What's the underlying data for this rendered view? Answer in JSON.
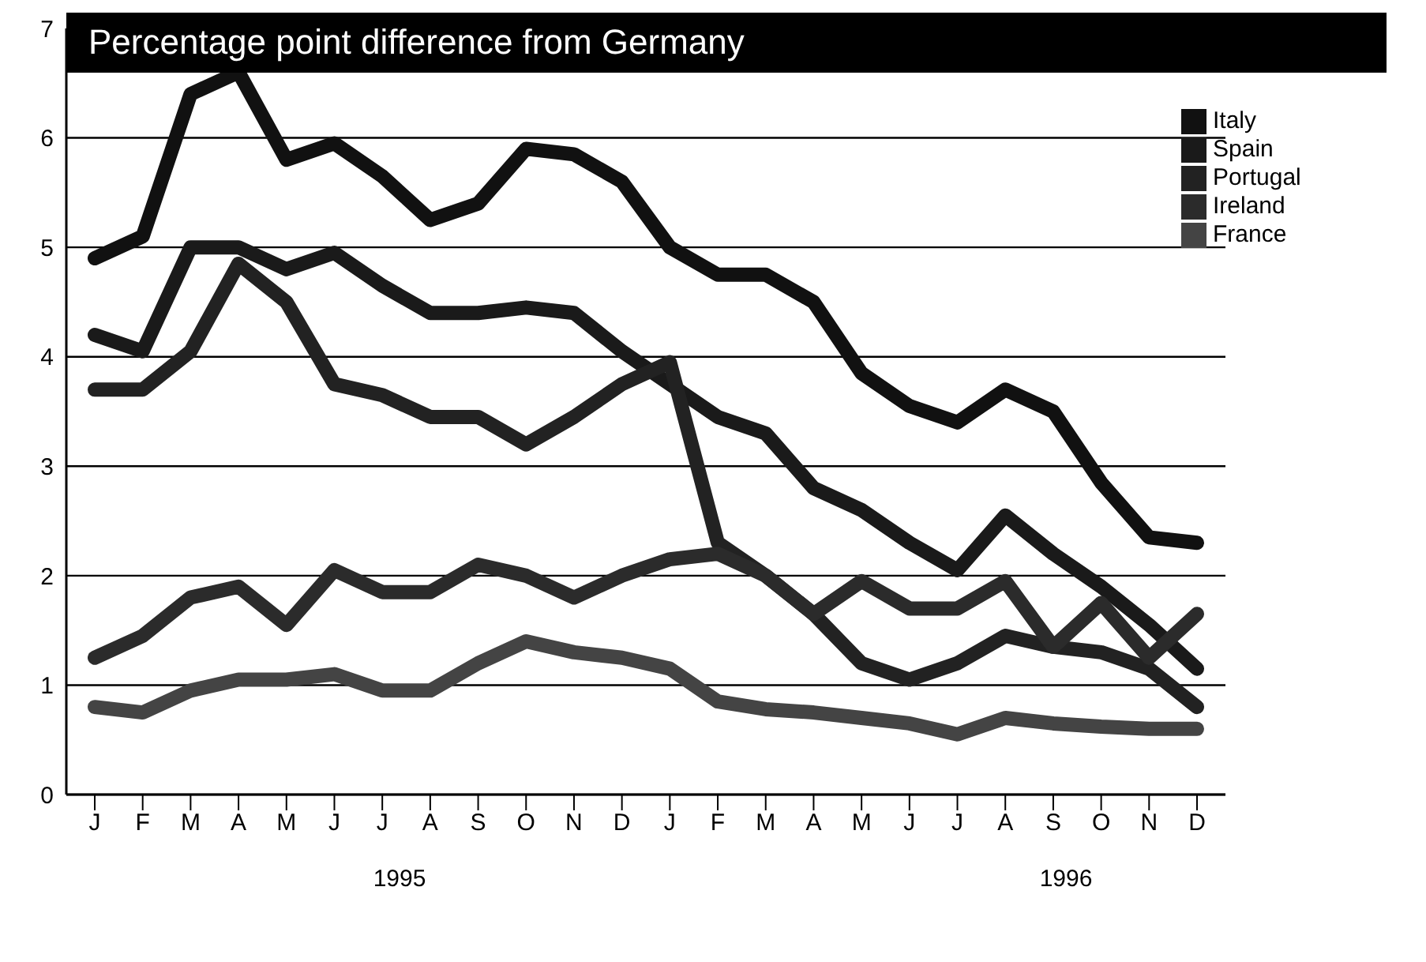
{
  "chart_data": {
    "type": "line",
    "title": "Percentage point difference from Germany",
    "categories": [
      "J",
      "F",
      "M",
      "A",
      "M",
      "J",
      "J",
      "A",
      "S",
      "O",
      "N",
      "D",
      "J",
      "F",
      "M",
      "A",
      "M",
      "J",
      "J",
      "A",
      "S",
      "O",
      "N",
      "D"
    ],
    "series": [
      {
        "name": "Italy",
        "color": "#111111",
        "values": [
          4.9,
          5.1,
          6.4,
          6.6,
          5.8,
          5.95,
          5.65,
          5.25,
          5.4,
          5.9,
          5.85,
          5.6,
          5.0,
          4.75,
          4.75,
          4.5,
          3.85,
          3.55,
          3.4,
          3.7,
          3.5,
          2.85,
          2.35,
          2.3
        ]
      },
      {
        "name": "Spain",
        "color": "#1a1a1a",
        "values": [
          4.2,
          4.05,
          5.0,
          5.0,
          4.8,
          4.95,
          4.65,
          4.4,
          4.4,
          4.45,
          4.4,
          4.05,
          3.75,
          3.45,
          3.3,
          2.8,
          2.6,
          2.3,
          2.05,
          2.55,
          2.2,
          1.9,
          1.55,
          1.15
        ]
      },
      {
        "name": "Portugal",
        "color": "#222222",
        "values": [
          3.7,
          3.7,
          4.05,
          4.85,
          4.5,
          3.75,
          3.65,
          3.45,
          3.45,
          3.2,
          3.45,
          3.75,
          3.95,
          2.3,
          2.0,
          1.65,
          1.2,
          1.05,
          1.2,
          1.45,
          1.35,
          1.3,
          1.15,
          0.8
        ]
      },
      {
        "name": "Ireland",
        "color": "#2b2b2b",
        "values": [
          1.25,
          1.45,
          1.8,
          1.9,
          1.55,
          2.05,
          1.85,
          1.85,
          2.1,
          2.0,
          1.8,
          2.0,
          2.15,
          2.2,
          2.0,
          1.65,
          1.95,
          1.7,
          1.7,
          1.95,
          1.35,
          1.75,
          1.25,
          1.65
        ]
      },
      {
        "name": "France",
        "color": "#444444",
        "values": [
          0.8,
          0.75,
          0.95,
          1.05,
          1.05,
          1.1,
          0.95,
          0.95,
          1.2,
          1.4,
          1.3,
          1.25,
          1.15,
          0.85,
          0.78,
          0.75,
          0.7,
          0.65,
          0.55,
          0.7,
          0.65,
          0.62,
          0.6,
          0.6
        ]
      }
    ],
    "ylim": [
      0,
      7
    ],
    "yticks": [
      0,
      1,
      2,
      3,
      4,
      5,
      6,
      7
    ],
    "grid": "y",
    "legend": "top right",
    "marker": "none",
    "line_style": "solid",
    "annotations": [
      "1995",
      "1996"
    ]
  }
}
